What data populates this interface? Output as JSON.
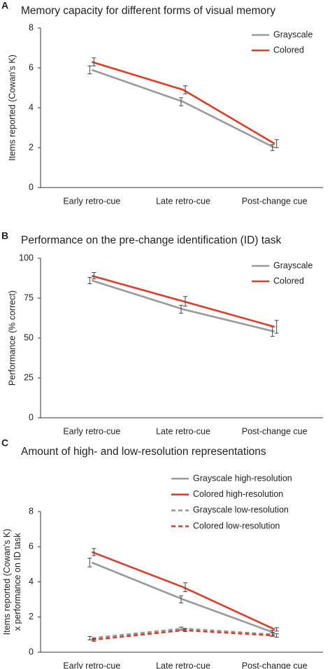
{
  "chart_data": [
    {
      "type": "line",
      "label": "A",
      "title": "Memory capacity for different forms of visual memory",
      "ylabel": [
        "Items reported (Cowan's K)"
      ],
      "categories": [
        "Early retro-cue",
        "Late retro-cue",
        "Post-change cue"
      ],
      "ylim": [
        0,
        8
      ],
      "yticks": [
        0,
        2,
        4,
        6,
        8
      ],
      "legend": "upper right",
      "series": [
        {
          "name": "Grayscale",
          "color": "#9a9a9a",
          "dashed": false,
          "values": [
            5.9,
            4.3,
            2.0
          ],
          "errors": [
            0.2,
            0.2,
            0.15
          ]
        },
        {
          "name": "Colored",
          "color": "#e03c28",
          "dashed": false,
          "values": [
            6.3,
            4.9,
            2.2
          ],
          "errors": [
            0.2,
            0.2,
            0.2
          ]
        }
      ]
    },
    {
      "type": "line",
      "label": "B",
      "title": "Performance on the pre-change identification (ID) task",
      "ylabel": [
        "Performance (% correct)"
      ],
      "categories": [
        "Early retro-cue",
        "Late retro-cue",
        "Post-change cue"
      ],
      "ylim": [
        0,
        100
      ],
      "yticks": [
        0,
        25,
        50,
        75,
        100
      ],
      "legend": "upper right",
      "series": [
        {
          "name": "Grayscale",
          "color": "#9a9a9a",
          "dashed": false,
          "values": [
            86,
            68,
            54
          ],
          "errors": [
            2,
            2.5,
            3
          ]
        },
        {
          "name": "Colored",
          "color": "#e03c28",
          "dashed": false,
          "values": [
            89,
            73,
            57
          ],
          "errors": [
            2,
            3,
            4
          ]
        }
      ]
    },
    {
      "type": "line",
      "label": "C",
      "title": "Amount of high- and low-resolution representations",
      "ylabel": [
        "Items reported (Cowan's K)",
        "x performance on ID task"
      ],
      "categories": [
        "Early retro-cue",
        "Late retro-cue",
        "Post-change cue"
      ],
      "ylim": [
        0,
        8
      ],
      "yticks": [
        0,
        2,
        4,
        6,
        8
      ],
      "legend": "upper right",
      "series": [
        {
          "name": "Grayscale high-resolution",
          "color": "#9a9a9a",
          "dashed": false,
          "values": [
            5.1,
            3.0,
            1.1
          ],
          "errors": [
            0.25,
            0.2,
            0.15
          ]
        },
        {
          "name": "Colored high-resolution",
          "color": "#e03c28",
          "dashed": false,
          "values": [
            5.7,
            3.7,
            1.3
          ],
          "errors": [
            0.2,
            0.25,
            0.1
          ]
        },
        {
          "name": "Grayscale low-resolution",
          "color": "#9a9a9a",
          "dashed": true,
          "values": [
            0.8,
            1.35,
            1.0
          ],
          "errors": [
            0.1,
            0.08,
            0.1
          ]
        },
        {
          "name": "Colored low-resolution",
          "color": "#e03c28",
          "dashed": true,
          "values": [
            0.7,
            1.25,
            0.95
          ],
          "errors": [
            0.08,
            0.08,
            0.1
          ]
        }
      ]
    }
  ]
}
